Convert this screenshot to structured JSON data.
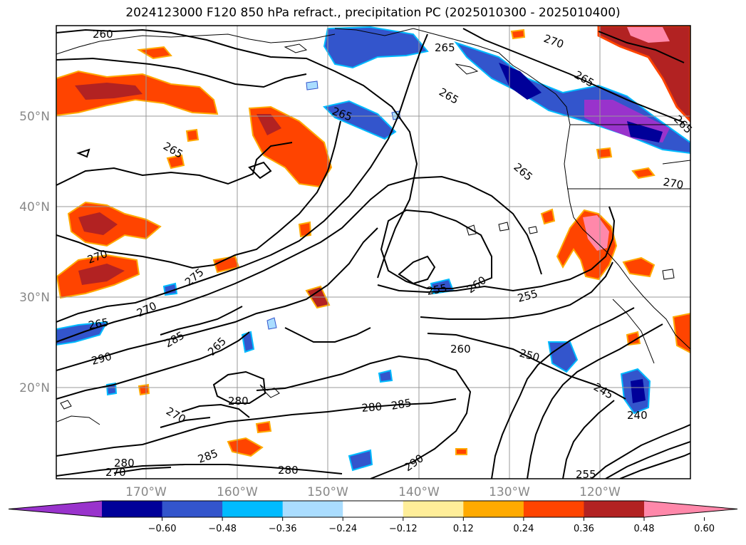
{
  "title": "2024123000 F120 850 hPa refract., precipitation PC (2025010300 - 2025010400)",
  "lat_labels": [
    "50°N",
    "40°N",
    "30°N",
    "20°N"
  ],
  "lon_labels": [
    "170°W",
    "160°W",
    "150°W",
    "140°W",
    "130°W",
    "120°W"
  ],
  "colorbar": {
    "ticks": [
      "−0.60",
      "−0.48",
      "−0.36",
      "−0.24",
      "−0.12",
      "0.12",
      "0.24",
      "0.36",
      "0.48",
      "0.60"
    ],
    "colors": [
      "#9933cc",
      "#000099",
      "#3355cc",
      "#00bbff",
      "#aaddff",
      "#ffffff",
      "#ffee99",
      "#ffaa00",
      "#ff4400",
      "#b22222",
      "#ff88aa"
    ]
  },
  "contour_labels": [
    "260",
    "270",
    "265",
    "265",
    "265",
    "265",
    "265",
    "270",
    "270",
    "275",
    "270",
    "265",
    "285",
    "290",
    "265",
    "280",
    "270",
    "285",
    "280",
    "285",
    "280",
    "290",
    "280",
    "270",
    "255",
    "260",
    "255",
    "250",
    "260",
    "245",
    "240",
    "265",
    "265",
    "255"
  ],
  "colors": {
    "contour": "#000000",
    "grid": "#999999",
    "coast": "#000000"
  }
}
